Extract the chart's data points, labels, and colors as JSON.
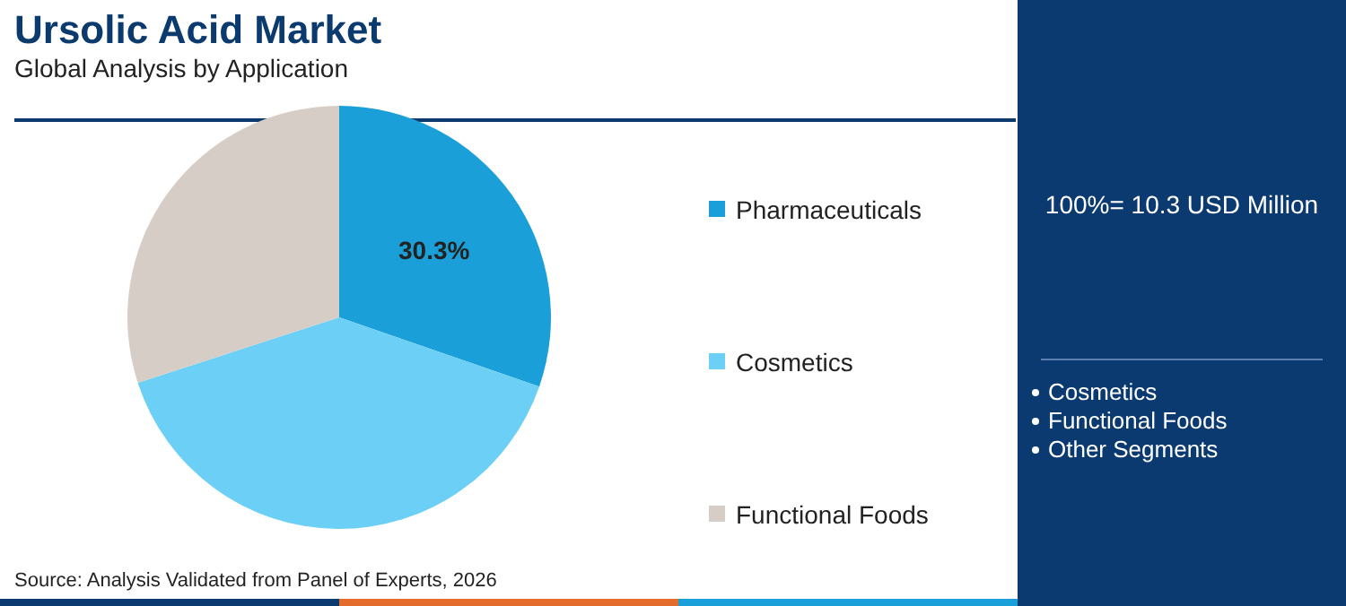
{
  "chart_data": {
    "type": "pie",
    "title": "Ursolic Acid Market",
    "subtitle": "Global Analysis by Application",
    "categories": [
      "Pharmaceuticals",
      "Cosmetics",
      "Functional Foods"
    ],
    "values": [
      30.3,
      39.7,
      30.0
    ],
    "colors": [
      "#1b9fd9",
      "#6ccff5",
      "#d7cdc7"
    ],
    "value_labels": [
      "30.3%",
      null,
      null
    ],
    "legend": "right",
    "annotations": [
      "100%= 10.3 USD Million",
      "Cosmetics",
      "Functional Foods",
      "Other Segments",
      "Source: Analysis Validated from Panel of Experts, 2026"
    ]
  }
}
